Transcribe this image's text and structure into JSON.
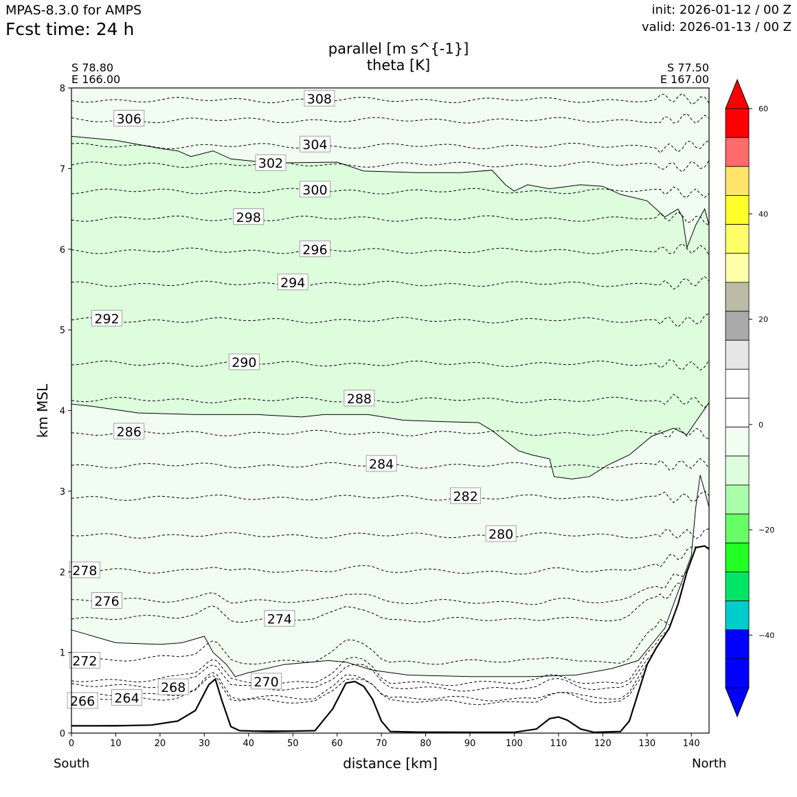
{
  "header": {
    "model": "MPAS-8.3.0 for AMPS",
    "fcst_time": "Fcst time:   24 h",
    "init": "init: 2026-01-12 / 00 Z",
    "valid": "valid: 2026-01-13 / 00 Z"
  },
  "endpoints": {
    "left_lat": "S 78.80",
    "left_lon": "E 166.00",
    "right_lat": "S 77.50",
    "right_lon": "E 167.00",
    "left_dir": "South",
    "right_dir": "North"
  },
  "colors": {
    "fill_light": "#f1fdf1",
    "fill_mid": "#ddfddd",
    "terrain": "#000000"
  },
  "chart_data": {
    "type": "cross-section contour",
    "title": "parallel [m s^{-1}]",
    "subtitle": "theta [K]",
    "xlabel": "distance [km]",
    "ylabel": "km MSL",
    "xlim": [
      0,
      144
    ],
    "ylim": [
      0,
      8
    ],
    "xticks": [
      0,
      10,
      20,
      30,
      40,
      50,
      60,
      70,
      80,
      90,
      100,
      110,
      120,
      130,
      140
    ],
    "yticks": [
      0,
      1,
      2,
      3,
      4,
      5,
      6,
      7,
      8
    ],
    "terrain": [
      [
        0,
        0.09
      ],
      [
        10,
        0.09
      ],
      [
        18,
        0.1
      ],
      [
        24,
        0.15
      ],
      [
        28,
        0.28
      ],
      [
        31,
        0.6
      ],
      [
        32.5,
        0.67
      ],
      [
        34,
        0.4
      ],
      [
        36,
        0.08
      ],
      [
        38,
        0.03
      ],
      [
        45,
        0.02
      ],
      [
        55,
        0.03
      ],
      [
        59,
        0.3
      ],
      [
        62,
        0.62
      ],
      [
        64,
        0.64
      ],
      [
        66,
        0.58
      ],
      [
        68,
        0.42
      ],
      [
        70,
        0.15
      ],
      [
        72,
        0.02
      ],
      [
        80,
        0.01
      ],
      [
        100,
        0.01
      ],
      [
        105,
        0.05
      ],
      [
        108,
        0.18
      ],
      [
        110,
        0.2
      ],
      [
        112,
        0.16
      ],
      [
        115,
        0.05
      ],
      [
        118,
        0.01
      ],
      [
        124,
        0.02
      ],
      [
        126,
        0.15
      ],
      [
        128,
        0.5
      ],
      [
        130,
        0.85
      ],
      [
        132,
        1.05
      ],
      [
        135,
        1.3
      ],
      [
        137,
        1.6
      ],
      [
        139,
        2.0
      ],
      [
        141,
        2.3
      ],
      [
        143,
        2.32
      ],
      [
        144,
        2.28
      ]
    ],
    "theta_levels": [
      {
        "value": 264,
        "height": 0.42,
        "label": "264",
        "label_x": 12.5
      },
      {
        "value": 266,
        "height": 0.38,
        "label": "266",
        "label_x": 2.5
      },
      {
        "value": 268,
        "height": 0.55,
        "label": "268",
        "label_x": 23
      },
      {
        "value": 270,
        "height": 0.62,
        "label": "270",
        "label_x": 44
      },
      {
        "value": 272,
        "height": 0.88,
        "label": "272",
        "label_x": 3
      },
      {
        "value": 274,
        "height": 1.4,
        "label": "274",
        "label_x": 47
      },
      {
        "value": 276,
        "height": 1.62,
        "label": "276",
        "label_x": 8
      },
      {
        "value": 278,
        "height": 2.0,
        "label": "278",
        "label_x": 3
      },
      {
        "value": 280,
        "height": 2.45,
        "label": "280",
        "label_x": 97
      },
      {
        "value": 282,
        "height": 2.92,
        "label": "282",
        "label_x": 89
      },
      {
        "value": 284,
        "height": 3.32,
        "label": "284",
        "label_x": 70
      },
      {
        "value": 286,
        "height": 3.72,
        "label": "286",
        "label_x": 13
      },
      {
        "value": 288,
        "height": 4.13,
        "label": "288",
        "label_x": 65
      },
      {
        "value": 290,
        "height": 4.58,
        "label": "290",
        "label_x": 39
      },
      {
        "value": 292,
        "height": 5.12,
        "label": "292",
        "label_x": 8
      },
      {
        "value": 294,
        "height": 5.57,
        "label": "294",
        "label_x": 50
      },
      {
        "value": 296,
        "height": 5.98,
        "label": "296",
        "label_x": 55
      },
      {
        "value": 298,
        "height": 6.38,
        "label": "298",
        "label_x": 40
      },
      {
        "value": 300,
        "height": 6.72,
        "label": "300",
        "label_x": 55
      },
      {
        "value": 302,
        "height": 7.05,
        "label": "302",
        "label_x": 45
      },
      {
        "value": 304,
        "height": 7.28,
        "label": "304",
        "label_x": 55
      },
      {
        "value": 306,
        "height": 7.6,
        "label": "306",
        "label_x": 13
      },
      {
        "value": 308,
        "height": 7.85,
        "label": "308",
        "label_x": 56
      }
    ],
    "wind_contour_minus5": [
      [
        0,
        7.4
      ],
      [
        10,
        7.35
      ],
      [
        20,
        7.25
      ],
      [
        24,
        7.22
      ],
      [
        27,
        7.15
      ],
      [
        32,
        7.22
      ],
      [
        36,
        7.12
      ],
      [
        45,
        7.07
      ],
      [
        60,
        7.08
      ],
      [
        66,
        6.97
      ],
      [
        78,
        6.95
      ],
      [
        88,
        6.95
      ],
      [
        95,
        6.98
      ],
      [
        98,
        6.8
      ],
      [
        100,
        6.72
      ],
      [
        103,
        6.8
      ],
      [
        108,
        6.75
      ],
      [
        115,
        6.8
      ],
      [
        120,
        6.78
      ],
      [
        124,
        6.68
      ],
      [
        130,
        6.6
      ],
      [
        134,
        6.4
      ],
      [
        137,
        6.5
      ],
      [
        138,
        6.4
      ],
      [
        139,
        6.02
      ],
      [
        141,
        6.3
      ],
      [
        143,
        6.5
      ],
      [
        144,
        6.3
      ],
      [
        144,
        4.1
      ],
      [
        139,
        3.7
      ],
      [
        136,
        3.78
      ],
      [
        131,
        3.68
      ],
      [
        126,
        3.45
      ],
      [
        121,
        3.32
      ],
      [
        117,
        3.18
      ],
      [
        113,
        3.15
      ],
      [
        109,
        3.18
      ],
      [
        108,
        3.4
      ],
      [
        104,
        3.45
      ],
      [
        101,
        3.5
      ],
      [
        95,
        3.75
      ],
      [
        92,
        3.85
      ],
      [
        85,
        3.86
      ],
      [
        75,
        3.88
      ],
      [
        67,
        3.95
      ],
      [
        57,
        3.95
      ],
      [
        52,
        3.92
      ],
      [
        42,
        3.95
      ],
      [
        36,
        3.95
      ],
      [
        28,
        3.95
      ],
      [
        15,
        3.97
      ],
      [
        5,
        4.05
      ],
      [
        0,
        4.08
      ]
    ],
    "wind_contour_0": [
      [
        0,
        1.28
      ],
      [
        10,
        1.12
      ],
      [
        20,
        1.1
      ],
      [
        25,
        1.12
      ],
      [
        30,
        1.2
      ],
      [
        32,
        1.0
      ],
      [
        35,
        0.85
      ],
      [
        37,
        0.7
      ],
      [
        40,
        0.75
      ],
      [
        48,
        0.85
      ],
      [
        58,
        0.9
      ],
      [
        62,
        0.88
      ],
      [
        68,
        0.78
      ],
      [
        76,
        0.72
      ],
      [
        90,
        0.7
      ],
      [
        104,
        0.7
      ],
      [
        114,
        0.72
      ],
      [
        122,
        0.8
      ],
      [
        128,
        0.9
      ],
      [
        134,
        1.3
      ],
      [
        138,
        1.9
      ],
      [
        140,
        2.2
      ],
      [
        141,
        2.8
      ],
      [
        142,
        3.2
      ],
      [
        143,
        3.0
      ],
      [
        144,
        2.8
      ],
      [
        144,
        2.3
      ],
      [
        141,
        2.3
      ],
      [
        139,
        2.0
      ],
      [
        137,
        1.6
      ],
      [
        135,
        1.3
      ],
      [
        132,
        1.05
      ],
      [
        130,
        0.85
      ],
      [
        128,
        0.5
      ],
      [
        126,
        0.15
      ],
      [
        124,
        0.02
      ],
      [
        118,
        0.01
      ],
      [
        115,
        0.05
      ],
      [
        110,
        0.2
      ],
      [
        105,
        0.05
      ],
      [
        100,
        0.01
      ],
      [
        72,
        0.02
      ],
      [
        70,
        0.15
      ],
      [
        66,
        0.58
      ],
      [
        62,
        0.62
      ],
      [
        59,
        0.3
      ],
      [
        55,
        0.03
      ],
      [
        38,
        0.03
      ],
      [
        36,
        0.08
      ],
      [
        34,
        0.4
      ],
      [
        32.5,
        0.67
      ],
      [
        31,
        0.6
      ],
      [
        28,
        0.28
      ],
      [
        24,
        0.15
      ],
      [
        18,
        0.1
      ],
      [
        0,
        0.09
      ]
    ],
    "colorbar": {
      "ticks": [
        60,
        40,
        20,
        0,
        -20,
        -40
      ],
      "colors": [
        "#ff0000",
        "#ff6a6a",
        "#ffe66a",
        "#ffff2a",
        "#ffff6a",
        "#ffffaa",
        "#bcbca6",
        "#aaaaaa",
        "#e6e6e6",
        "#ffffff",
        "#ffffff",
        "#f1fdf1",
        "#ddfddd",
        "#aaffaa",
        "#66ff66",
        "#22ff22",
        "#00e566",
        "#00cccc",
        "#0000ff",
        "#0000ff"
      ],
      "top_extend": "#ff0000",
      "bottom_extend": "#0000ff",
      "range": [
        -50,
        60
      ]
    }
  }
}
